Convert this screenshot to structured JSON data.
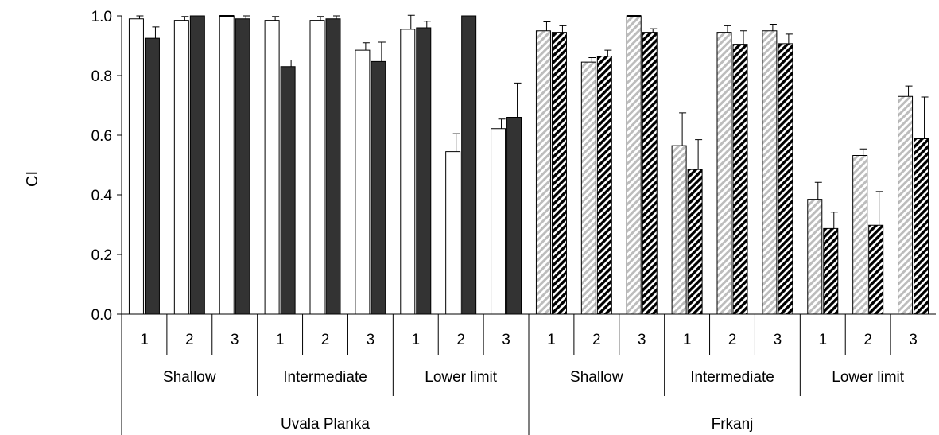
{
  "chart_data": {
    "type": "bar",
    "ylabel": "CI",
    "xlabel": "",
    "title": "",
    "ylim": [
      0,
      1.0
    ],
    "yticks": [
      "0.0",
      "0.2",
      "0.4",
      "0.6",
      "0.8",
      "1.0"
    ],
    "grid": false,
    "legend": "none",
    "sites": [
      "Uvala Planka",
      "Frkanj"
    ],
    "zones": [
      "Shallow",
      "Intermediate",
      "Lower limit"
    ],
    "transects": [
      "1",
      "2",
      "3"
    ],
    "series": [
      {
        "site": "Uvala Planka",
        "pairs": [
          {
            "a": 0.99,
            "a_err": 0.01,
            "b": 0.925,
            "b_err": 0.038
          },
          {
            "a": 0.985,
            "a_err": 0.013,
            "b": 1.0,
            "b_err": 0.0
          },
          {
            "a": 1.0,
            "a_err": 0.0,
            "b": 0.99,
            "b_err": 0.01
          },
          {
            "a": 0.985,
            "a_err": 0.013,
            "b": 0.83,
            "b_err": 0.022
          },
          {
            "a": 0.985,
            "a_err": 0.013,
            "b": 0.99,
            "b_err": 0.01
          },
          {
            "a": 0.885,
            "a_err": 0.025,
            "b": 0.847,
            "b_err": 0.065
          },
          {
            "a": 0.955,
            "a_err": 0.047,
            "b": 0.96,
            "b_err": 0.022
          },
          {
            "a": 0.545,
            "a_err": 0.06,
            "b": 1.0,
            "b_err": 0.0
          },
          {
            "a": 0.622,
            "a_err": 0.032,
            "b": 0.66,
            "b_err": 0.115
          }
        ]
      },
      {
        "site": "Frkanj",
        "pairs": [
          {
            "a": 0.95,
            "a_err": 0.03,
            "b": 0.945,
            "b_err": 0.022
          },
          {
            "a": 0.845,
            "a_err": 0.015,
            "b": 0.865,
            "b_err": 0.02
          },
          {
            "a": 1.0,
            "a_err": 0.0,
            "b": 0.945,
            "b_err": 0.012
          },
          {
            "a": 0.565,
            "a_err": 0.11,
            "b": 0.485,
            "b_err": 0.1
          },
          {
            "a": 0.945,
            "a_err": 0.022,
            "b": 0.905,
            "b_err": 0.045
          },
          {
            "a": 0.95,
            "a_err": 0.022,
            "b": 0.907,
            "b_err": 0.032
          },
          {
            "a": 0.385,
            "a_err": 0.057,
            "b": 0.287,
            "b_err": 0.055
          },
          {
            "a": 0.532,
            "a_err": 0.022,
            "b": 0.298,
            "b_err": 0.113
          },
          {
            "a": 0.73,
            "a_err": 0.035,
            "b": 0.588,
            "b_err": 0.14
          }
        ]
      }
    ],
    "colors": {
      "uvala_a": "#ffffff",
      "uvala_b": "#333333",
      "frkanj_a_stripe": "#bdbdbd",
      "frkanj_b_stripe": "#000000",
      "outline": "#000000"
    }
  }
}
